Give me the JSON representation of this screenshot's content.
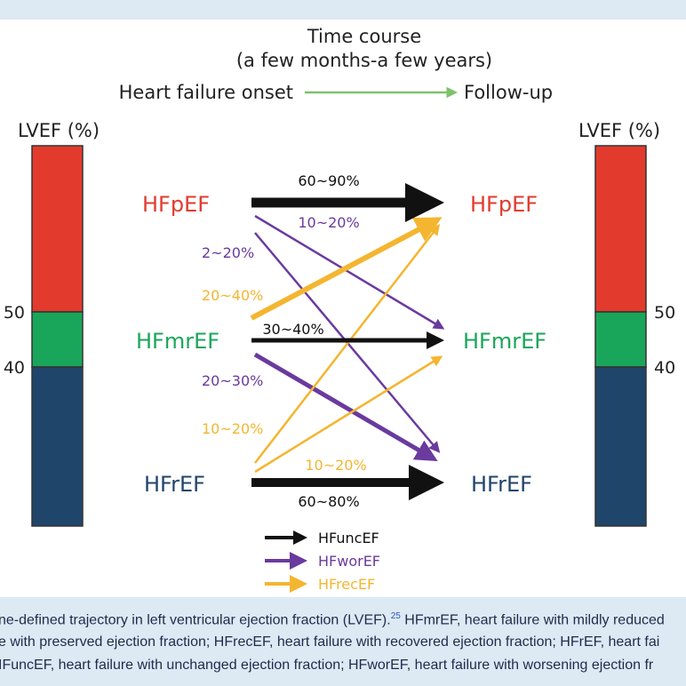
{
  "header": {
    "time_course_title": "Time course",
    "time_course_subtitle": "(a few months-a few years)",
    "onset_label": "Heart failure onset",
    "followup_label": "Follow-up"
  },
  "lvef_bar": {
    "left_label": "LVEF (%)",
    "right_label": "LVEF (%)",
    "tick_50": "50",
    "tick_40": "40"
  },
  "categories": {
    "left_hfpef": "HFpEF",
    "left_hfmref": "HFmrEF",
    "left_hfref": "HFrEF",
    "right_hfpef": "HFpEF",
    "right_hfmref": "HFmrEF",
    "right_hfref": "HFrEF"
  },
  "transitions": {
    "pef_to_pef": "60~90%",
    "pef_worsen": "10~20%",
    "pef_to_ref": "2~20%",
    "mr_to_pef": "20~40%",
    "mr_to_mr": "30~40%",
    "mr_to_ref": "20~30%",
    "ref_to_pef": "10~20%",
    "ref_to_mr": "10~20%",
    "ref_to_ref": "60~80%"
  },
  "legend": {
    "unchanged": "HFuncEF",
    "worsening": "HFworEF",
    "recovered": "HFrecEF"
  },
  "colors": {
    "hfpef_red": "#e23b2e",
    "hfmref_green": "#1aa65a",
    "hfref_blue": "#20456b",
    "unchanged_black": "#111111",
    "worsening_purple": "#6a3a9e",
    "recovered_yellow": "#f4b530",
    "onset_arrow_green": "#7cc36b"
  },
  "caption": {
    "line1": "ne-defined trajectory in left ventricular ejection fraction (LVEF).",
    "ref": "25",
    "line1b": " HFmrEF, heart failure with mildly reduced",
    "line2": "e with preserved ejection fraction; HFrecEF, heart failure with recovered ejection fraction; HFrEF, heart fai",
    "line3": "IFuncEF, heart failure with unchanged ejection fraction; HFworEF, heart failure with worsening ejection fr"
  }
}
